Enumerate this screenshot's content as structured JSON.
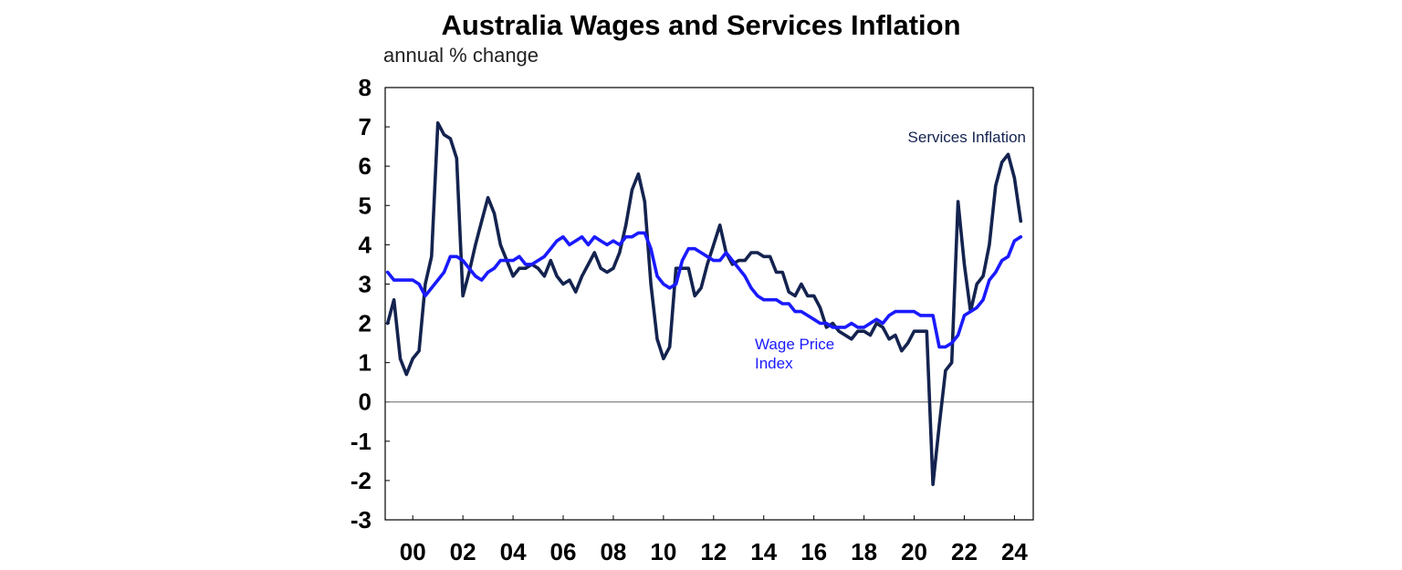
{
  "chart_data": {
    "type": "line",
    "title": "Australia Wages and Services Inflation",
    "ylabel": "annual % change",
    "xlabel": "",
    "ylim": [
      -3,
      8
    ],
    "yticks": [
      "8",
      "7",
      "6",
      "5",
      "4",
      "3",
      "2",
      "1",
      "0",
      "-1",
      "-2",
      "-3"
    ],
    "xticks": [
      "00",
      "02",
      "04",
      "06",
      "08",
      "10",
      "12",
      "14",
      "16",
      "18",
      "20",
      "22",
      "24"
    ],
    "grid": false,
    "zero_line": true,
    "x_start_year": 1999.0,
    "x_step_years": 0.25,
    "colors": {
      "services": "#14234f",
      "wpi": "#1a1aff",
      "zero_line": "#808080",
      "frame": "#000000"
    },
    "series": [
      {
        "name": "Services Inflation",
        "color": "#14234f",
        "values": [
          2.0,
          2.6,
          1.1,
          0.7,
          1.1,
          1.3,
          3.0,
          3.7,
          7.1,
          6.8,
          6.7,
          6.2,
          2.7,
          3.3,
          4.0,
          4.6,
          5.2,
          4.8,
          4.0,
          3.6,
          3.2,
          3.4,
          3.4,
          3.5,
          3.4,
          3.2,
          3.6,
          3.2,
          3.0,
          3.1,
          2.8,
          3.2,
          3.5,
          3.8,
          3.4,
          3.3,
          3.4,
          3.8,
          4.5,
          5.4,
          5.8,
          5.1,
          3.0,
          1.6,
          1.1,
          1.4,
          3.4,
          3.4,
          3.4,
          2.7,
          2.9,
          3.5,
          4.0,
          4.5,
          3.8,
          3.5,
          3.6,
          3.6,
          3.8,
          3.8,
          3.7,
          3.7,
          3.3,
          3.3,
          2.8,
          2.7,
          3.0,
          2.7,
          2.7,
          2.4,
          1.9,
          2.0,
          1.8,
          1.7,
          1.6,
          1.8,
          1.8,
          1.7,
          2.0,
          1.9,
          1.6,
          1.7,
          1.3,
          1.5,
          1.8,
          1.8,
          1.8,
          -2.1,
          -0.6,
          0.8,
          1.0,
          5.1,
          3.5,
          2.3,
          3.0,
          3.2,
          4.0,
          5.5,
          6.1,
          6.3,
          5.7,
          4.6
        ]
      },
      {
        "name": "Wage Price Index",
        "color": "#1a1aff",
        "values": [
          3.3,
          3.1,
          3.1,
          3.1,
          3.1,
          3.0,
          2.7,
          2.9,
          3.1,
          3.3,
          3.7,
          3.7,
          3.6,
          3.4,
          3.2,
          3.1,
          3.3,
          3.4,
          3.6,
          3.6,
          3.6,
          3.7,
          3.5,
          3.5,
          3.6,
          3.7,
          3.9,
          4.1,
          4.2,
          4.0,
          4.1,
          4.2,
          4.0,
          4.2,
          4.1,
          4.0,
          4.1,
          4.0,
          4.2,
          4.2,
          4.3,
          4.3,
          3.9,
          3.2,
          3.0,
          2.9,
          3.0,
          3.6,
          3.9,
          3.9,
          3.8,
          3.7,
          3.6,
          3.6,
          3.8,
          3.6,
          3.4,
          3.2,
          2.9,
          2.7,
          2.6,
          2.6,
          2.6,
          2.5,
          2.5,
          2.3,
          2.3,
          2.2,
          2.1,
          2.0,
          2.0,
          1.9,
          1.9,
          1.9,
          2.0,
          1.9,
          1.9,
          2.0,
          2.1,
          2.0,
          2.2,
          2.3,
          2.3,
          2.3,
          2.3,
          2.2,
          2.2,
          2.2,
          1.4,
          1.4,
          1.5,
          1.7,
          2.2,
          2.3,
          2.4,
          2.6,
          3.1,
          3.3,
          3.6,
          3.7,
          4.1,
          4.2
        ]
      }
    ],
    "annotations": [
      {
        "text": "Services Inflation",
        "series": 0
      },
      {
        "text": "Wage Price",
        "series": 1
      },
      {
        "text": "Index",
        "series": 1
      }
    ]
  }
}
